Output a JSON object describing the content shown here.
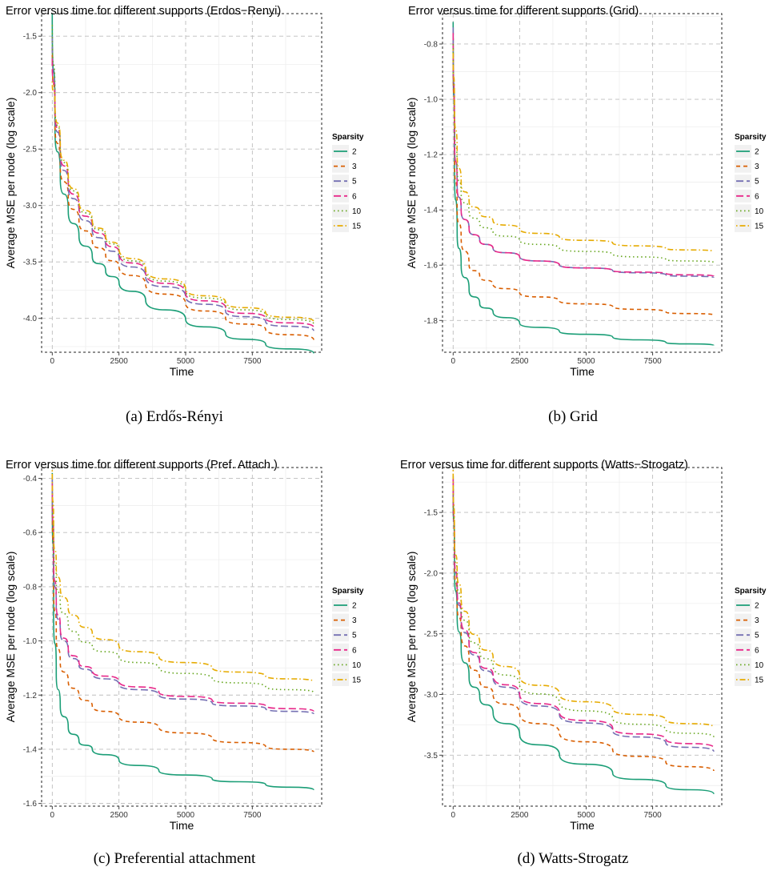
{
  "figure": {
    "legend_title": "Sparsity",
    "series_styles": [
      {
        "name": "2",
        "color": "#1b9e77",
        "dash": "solid"
      },
      {
        "name": "3",
        "color": "#d95f02",
        "dash": "dashed"
      },
      {
        "name": "5",
        "color": "#7570b3",
        "dash": "longdash"
      },
      {
        "name": "6",
        "color": "#e7298a",
        "dash": "longdash"
      },
      {
        "name": "10",
        "color": "#66a61e",
        "dash": "dotted"
      },
      {
        "name": "15",
        "color": "#e6ab02",
        "dash": "dotdash"
      }
    ]
  },
  "chart_data": [
    {
      "type": "line",
      "title": "Error versus time for different supports (Erdos−Renyi)",
      "caption": "(a)  Erdős-Rényi",
      "xlabel": "Time",
      "ylabel": "Average MSE per node (log scale)",
      "xlim": [
        -400,
        10100
      ],
      "ylim": [
        -4.3,
        -1.3
      ],
      "xticks": [
        0,
        2500,
        5000,
        7500
      ],
      "xtick_labels": [
        "0",
        "2500",
        "5000",
        "7500"
      ],
      "yticks": [
        -4.0,
        -3.5,
        -3.0,
        -2.5,
        -2.0,
        -1.5
      ],
      "ytick_labels": [
        "-4.0",
        "-3.5",
        "-3.0",
        "-2.5",
        "-2.0",
        "-1.5"
      ],
      "legend_title": "Sparsity",
      "x": [
        0,
        100,
        300,
        600,
        1000,
        1500,
        2000,
        2500,
        3500,
        5000,
        6500,
        8000,
        9800
      ],
      "series": [
        {
          "name": "2",
          "values": [
            -1.3,
            -2.3,
            -2.75,
            -3.05,
            -3.27,
            -3.45,
            -3.58,
            -3.68,
            -3.84,
            -4.01,
            -4.14,
            -4.23,
            -4.31
          ]
        },
        {
          "name": "3",
          "values": [
            -1.6,
            -2.25,
            -2.65,
            -2.93,
            -3.14,
            -3.31,
            -3.44,
            -3.54,
            -3.7,
            -3.87,
            -4.0,
            -4.1,
            -4.19
          ]
        },
        {
          "name": "5",
          "values": [
            -1.5,
            -2.15,
            -2.55,
            -2.83,
            -3.05,
            -3.22,
            -3.35,
            -3.46,
            -3.63,
            -3.81,
            -3.94,
            -4.03,
            -4.11
          ]
        },
        {
          "name": "6",
          "values": [
            -1.7,
            -2.12,
            -2.51,
            -2.79,
            -3.01,
            -3.18,
            -3.31,
            -3.42,
            -3.6,
            -3.78,
            -3.91,
            -4.0,
            -4.08
          ]
        },
        {
          "name": "10",
          "values": [
            -1.4,
            -2.1,
            -2.48,
            -2.76,
            -2.98,
            -3.15,
            -3.28,
            -3.4,
            -3.58,
            -3.76,
            -3.88,
            -3.97,
            -4.05
          ]
        },
        {
          "name": "15",
          "values": [
            -1.9,
            -2.08,
            -2.46,
            -2.74,
            -2.96,
            -3.13,
            -3.27,
            -3.38,
            -3.56,
            -3.74,
            -3.86,
            -3.95,
            -4.03
          ]
        }
      ]
    },
    {
      "type": "line",
      "title": "Error versus time for different supports (Grid)",
      "caption": "(b)  Grid",
      "xlabel": "Time",
      "ylabel": "Average MSE per node (log scale)",
      "xlim": [
        -400,
        10100
      ],
      "ylim": [
        -1.915,
        -0.69
      ],
      "xticks": [
        0,
        2500,
        5000,
        7500
      ],
      "xtick_labels": [
        "0",
        "2500",
        "5000",
        "7500"
      ],
      "yticks": [
        -1.8,
        -1.6,
        -1.4,
        -1.2,
        -1.0,
        -0.8
      ],
      "ytick_labels": [
        "-1.8",
        "-1.6",
        "-1.4",
        "-1.2",
        "-1.0",
        "-0.8"
      ],
      "legend_title": "Sparsity",
      "x": [
        0,
        50,
        150,
        300,
        600,
        1000,
        1500,
        2500,
        4000,
        6000,
        8000,
        9800
      ],
      "series": [
        {
          "name": "2",
          "values": [
            -0.72,
            -1.25,
            -1.48,
            -1.6,
            -1.69,
            -1.74,
            -1.77,
            -1.81,
            -1.84,
            -1.86,
            -1.88,
            -1.89
          ]
        },
        {
          "name": "3",
          "values": [
            -0.78,
            -1.2,
            -1.4,
            -1.5,
            -1.6,
            -1.64,
            -1.67,
            -1.7,
            -1.73,
            -1.75,
            -1.77,
            -1.78
          ]
        },
        {
          "name": "5",
          "values": [
            -0.74,
            -1.14,
            -1.31,
            -1.4,
            -1.47,
            -1.51,
            -1.54,
            -1.57,
            -1.6,
            -1.62,
            -1.635,
            -1.645
          ]
        },
        {
          "name": "6",
          "values": [
            -0.76,
            -1.14,
            -1.31,
            -1.4,
            -1.47,
            -1.51,
            -1.54,
            -1.57,
            -1.6,
            -1.62,
            -1.63,
            -1.64
          ]
        },
        {
          "name": "10",
          "values": [
            -0.8,
            -1.08,
            -1.25,
            -1.34,
            -1.41,
            -1.45,
            -1.48,
            -1.51,
            -1.54,
            -1.56,
            -1.58,
            -1.59
          ]
        },
        {
          "name": "15",
          "values": [
            -0.82,
            -1.02,
            -1.2,
            -1.3,
            -1.37,
            -1.41,
            -1.44,
            -1.47,
            -1.5,
            -1.52,
            -1.54,
            -1.55
          ]
        }
      ]
    },
    {
      "type": "line",
      "title": "Error versus time for different supports (Pref. Attach.)",
      "caption": "(c)  Preferential attachment",
      "xlabel": "Time",
      "ylabel": "Average MSE per node (log scale)",
      "xlim": [
        -400,
        10100
      ],
      "ylim": [
        -1.61,
        -0.36
      ],
      "xticks": [
        0,
        2500,
        5000,
        7500
      ],
      "xtick_labels": [
        "0",
        "2500",
        "5000",
        "7500"
      ],
      "yticks": [
        -1.6,
        -1.4,
        -1.2,
        -1.0,
        -0.8,
        -0.6,
        -0.4
      ],
      "ytick_labels": [
        "-1.6",
        "-1.4",
        "-1.2",
        "-1.0",
        "-0.8",
        "-0.6",
        "-0.4"
      ],
      "legend_title": "Sparsity",
      "x": [
        0,
        50,
        150,
        300,
        600,
        1000,
        1500,
        2500,
        4000,
        6000,
        8000,
        9800
      ],
      "series": [
        {
          "name": "2",
          "values": [
            -0.38,
            -0.9,
            -1.12,
            -1.24,
            -1.32,
            -1.37,
            -1.4,
            -1.44,
            -1.48,
            -1.51,
            -1.53,
            -1.55
          ]
        },
        {
          "name": "3",
          "values": [
            -0.45,
            -0.8,
            -0.98,
            -1.08,
            -1.15,
            -1.2,
            -1.24,
            -1.28,
            -1.32,
            -1.36,
            -1.39,
            -1.41
          ]
        },
        {
          "name": "5",
          "values": [
            -0.4,
            -0.72,
            -0.88,
            -0.96,
            -1.04,
            -1.09,
            -1.12,
            -1.16,
            -1.2,
            -1.23,
            -1.25,
            -1.27
          ]
        },
        {
          "name": "6",
          "values": [
            -0.42,
            -0.7,
            -0.86,
            -0.95,
            -1.03,
            -1.08,
            -1.11,
            -1.15,
            -1.19,
            -1.22,
            -1.24,
            -1.26
          ]
        },
        {
          "name": "10",
          "values": [
            -0.44,
            -0.65,
            -0.78,
            -0.86,
            -0.94,
            -0.99,
            -1.02,
            -1.06,
            -1.1,
            -1.14,
            -1.17,
            -1.19
          ]
        },
        {
          "name": "15",
          "values": [
            -0.37,
            -0.6,
            -0.73,
            -0.8,
            -0.88,
            -0.93,
            -0.97,
            -1.02,
            -1.06,
            -1.1,
            -1.13,
            -1.15
          ]
        }
      ]
    },
    {
      "type": "line",
      "title": "Error versus time for different supports (Watts−Strogatz)",
      "caption": "(d)  Watts-Strogatz",
      "xlabel": "Time",
      "ylabel": "Average MSE per node (log scale)",
      "xlim": [
        -400,
        10100
      ],
      "ylim": [
        -3.92,
        -1.13
      ],
      "xticks": [
        0,
        2500,
        5000,
        7500
      ],
      "xtick_labels": [
        "0",
        "2500",
        "5000",
        "7500"
      ],
      "yticks": [
        -3.5,
        -3.0,
        -2.5,
        -2.0,
        -1.5
      ],
      "ytick_labels": [
        "-3.5",
        "-3.0",
        "-2.5",
        "-2.0",
        "-1.5"
      ],
      "legend_title": "Sparsity",
      "x": [
        0,
        50,
        150,
        300,
        600,
        1000,
        1500,
        2500,
        4000,
        6000,
        8000,
        9800
      ],
      "series": [
        {
          "name": "2",
          "values": [
            -1.2,
            -1.95,
            -2.35,
            -2.62,
            -2.86,
            -3.02,
            -3.15,
            -3.33,
            -3.5,
            -3.65,
            -3.75,
            -3.82
          ]
        },
        {
          "name": "3",
          "values": [
            -1.25,
            -1.9,
            -2.25,
            -2.48,
            -2.72,
            -2.88,
            -3.0,
            -3.16,
            -3.32,
            -3.46,
            -3.56,
            -3.63
          ]
        },
        {
          "name": "5",
          "values": [
            -1.3,
            -1.85,
            -2.15,
            -2.38,
            -2.6,
            -2.75,
            -2.86,
            -3.02,
            -3.17,
            -3.3,
            -3.4,
            -3.47
          ]
        },
        {
          "name": "6",
          "values": [
            -1.22,
            -1.83,
            -2.13,
            -2.36,
            -2.58,
            -2.73,
            -2.84,
            -3.0,
            -3.15,
            -3.28,
            -3.37,
            -3.44
          ]
        },
        {
          "name": "10",
          "values": [
            -1.28,
            -1.78,
            -2.05,
            -2.28,
            -2.5,
            -2.65,
            -2.76,
            -2.92,
            -3.07,
            -3.2,
            -3.29,
            -3.35
          ]
        },
        {
          "name": "15",
          "values": [
            -1.15,
            -1.72,
            -1.98,
            -2.2,
            -2.43,
            -2.58,
            -2.69,
            -2.85,
            -3.0,
            -3.12,
            -3.21,
            -3.27
          ]
        }
      ]
    }
  ]
}
